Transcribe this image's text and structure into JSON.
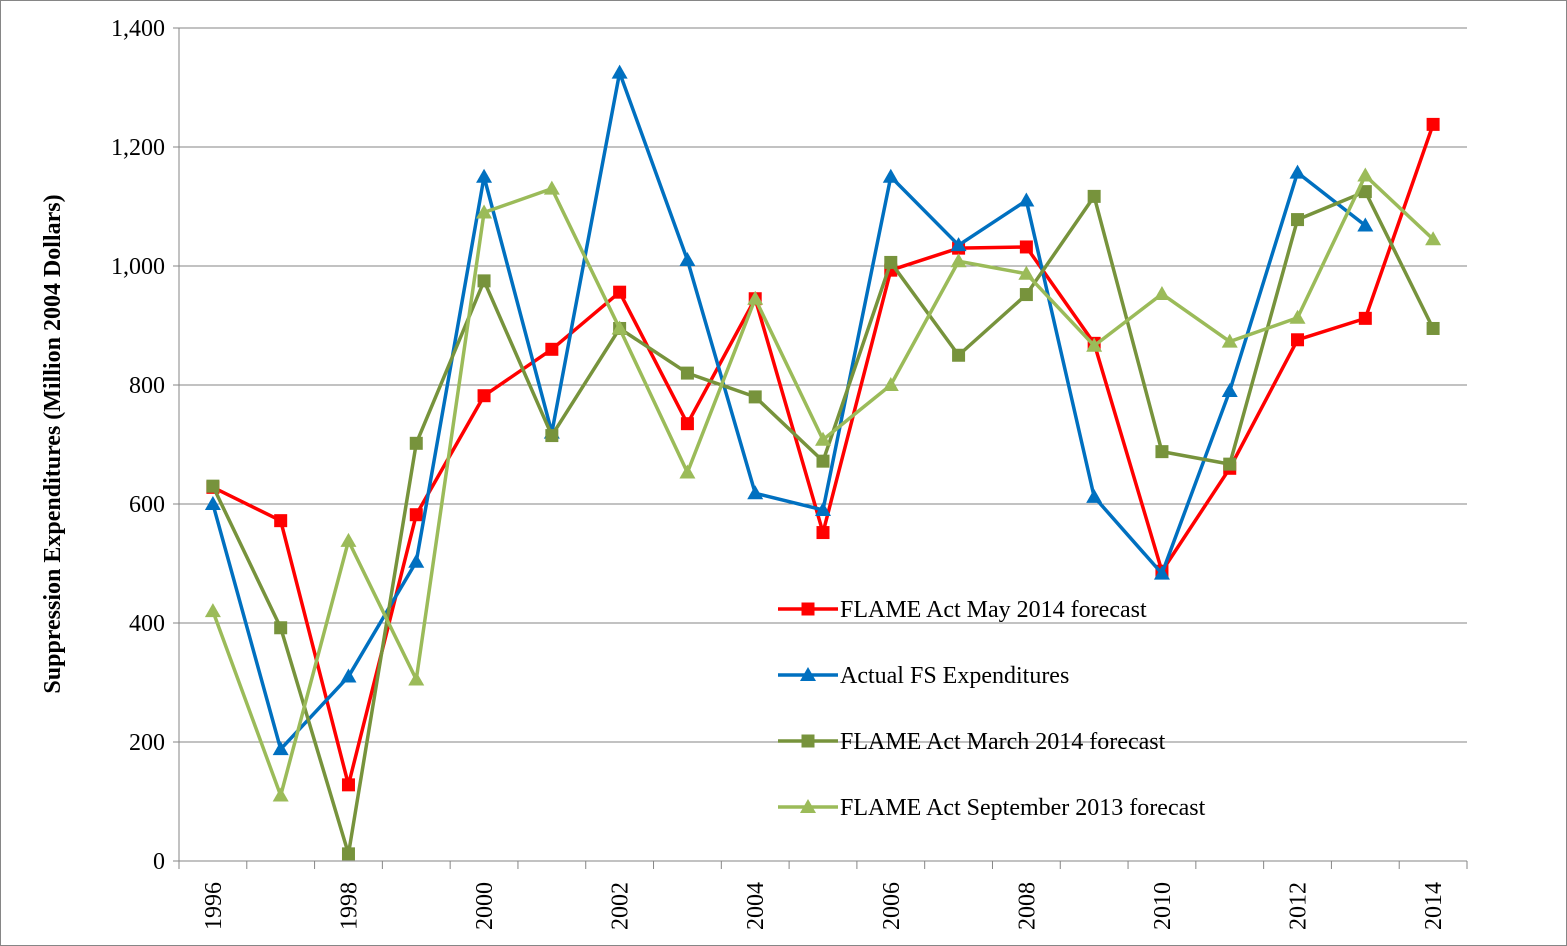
{
  "chart_data": {
    "type": "line",
    "y_label": "Suppression Expenditures (Million 2004 Dollars)",
    "categories": [
      "1996",
      null,
      "1998",
      null,
      "2000",
      null,
      "2002",
      null,
      "2004",
      null,
      "2006",
      null,
      "2008",
      null,
      "2010",
      null,
      "2012",
      null,
      "2014"
    ],
    "ylim": [
      0,
      1400
    ],
    "yticks": [
      0,
      200,
      400,
      600,
      800,
      {
        "value": 1000,
        "label": "1,000"
      },
      {
        "value": 1200,
        "label": "1,200"
      },
      {
        "value": 1400,
        "label": "1,400"
      }
    ],
    "grid": true,
    "legend": "inside-lower-center",
    "series": [
      {
        "name": "FLAME Act May 2014 forecast",
        "color": "#ff0000",
        "marker": "square",
        "values": [
          628,
          572,
          128,
          582,
          782,
          860,
          956,
          735,
          945,
          552,
          993,
          1030,
          1032,
          870,
          487,
          660,
          876,
          912,
          1238
        ]
      },
      {
        "name": "Actual FS Expenditures",
        "color": "#0070c0",
        "marker": "triangle",
        "values": [
          600,
          188,
          310,
          503,
          1150,
          720,
          1325,
          1010,
          618,
          590,
          1150,
          1035,
          1110,
          612,
          483,
          790,
          1157,
          1068,
          null
        ]
      },
      {
        "name": "FLAME Act March 2014 forecast",
        "color": "#77933c",
        "marker": "square",
        "values": [
          630,
          392,
          12,
          702,
          975,
          715,
          895,
          820,
          780,
          672,
          1006,
          850,
          952,
          1117,
          688,
          667,
          1078,
          1125,
          895
        ]
      },
      {
        "name": "FLAME Act September 2013 forecast",
        "color": "#9bbb59",
        "marker": "triangle",
        "values": [
          420,
          110,
          538,
          305,
          1090,
          1130,
          895,
          653,
          945,
          708,
          800,
          1008,
          987,
          866,
          953,
          873,
          913,
          1152,
          1045
        ]
      }
    ]
  }
}
